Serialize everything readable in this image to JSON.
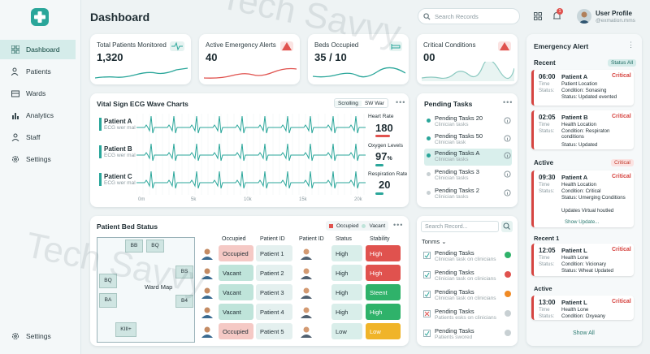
{
  "app": {
    "title": "Dashboard",
    "watermark": "Tech Savvy"
  },
  "sidebar": {
    "items": [
      {
        "label": "Dashboard",
        "icon": "grid-icon"
      },
      {
        "label": "Patients",
        "icon": "users-icon"
      },
      {
        "label": "Wards",
        "icon": "wards-icon"
      },
      {
        "label": "Analytics",
        "icon": "chart-icon"
      },
      {
        "label": "Staff",
        "icon": "staff-icon"
      },
      {
        "label": "Settings",
        "icon": "gear-icon"
      }
    ],
    "bottom": "Settings"
  },
  "header": {
    "search_placeholder": "Search Records",
    "notification_count": "1",
    "user_name": "User Profile",
    "user_email": "@exmation.mms"
  },
  "stats": [
    {
      "label": "Total Patients Monitored",
      "value": "1,320"
    },
    {
      "label": "Active Emergency Alerts",
      "value": "40"
    },
    {
      "label": "Beds Occupied",
      "value": "35 / 10"
    },
    {
      "label": "Critical Conditions",
      "value": "00"
    }
  ],
  "ecg": {
    "title": "Vital Sign ECG Wave Charts",
    "toggle_a": "Scrolling",
    "toggle_b": "SW War",
    "patients": [
      {
        "name": "Patient A",
        "sub": "ECG wer mal"
      },
      {
        "name": "Patient B",
        "sub": "ECG wer mal"
      },
      {
        "name": "Patient C",
        "sub": "ECG wer mal"
      }
    ],
    "axis": [
      "0m",
      "5k",
      "10k",
      "15k",
      "20k"
    ],
    "heart_rate_label": "Heart Rate",
    "heart_rate": "180",
    "oxygen_label": "Oxygen Levels",
    "oxygen": "97",
    "oxygen_unit": "%",
    "resp_label": "Respiration Rate",
    "resp": "20"
  },
  "pending": {
    "title": "Pending Tasks",
    "items": [
      {
        "name": "Pending Tasks 20",
        "sub": "Clinician tasks"
      },
      {
        "name": "Pending Tasks 50",
        "sub": "Clinician task"
      },
      {
        "name": "Pending Tasks A",
        "sub": "Clinician tasks"
      },
      {
        "name": "Pending Tasks 3",
        "sub": "Clinician tasks"
      },
      {
        "name": "Pending Tasks 2",
        "sub": "Clinician tasks"
      }
    ]
  },
  "bed": {
    "title": "Patient Bed Status",
    "legend_occupied": "Occupied",
    "legend_vacant": "Vacant",
    "map_label": "Ward Map",
    "rooms": [
      "BB",
      "BQ",
      "BS",
      "BQ",
      "BA",
      "B4",
      "KIII+"
    ],
    "headers": [
      "Occupied",
      "Patient ID",
      "Patient ID",
      "Status",
      "Stability"
    ],
    "rows": [
      {
        "occ": "Occupied",
        "pid": "Patient 1",
        "status": "High",
        "stability": "High",
        "occ_color": "#f5c9c5",
        "stab_color": "#e0524e"
      },
      {
        "occ": "Vacant",
        "pid": "Patient 2",
        "status": "High",
        "stability": "High",
        "occ_color": "#bfe4da",
        "stab_color": "#e0524e"
      },
      {
        "occ": "Vacant",
        "pid": "Patient 3",
        "status": "High",
        "stability": "Steent",
        "occ_color": "#bfe4da",
        "stab_color": "#2fb26a"
      },
      {
        "occ": "Vacant",
        "pid": "Patient 4",
        "status": "High",
        "stability": "High",
        "occ_color": "#bfe4da",
        "stab_color": "#2fb26a"
      },
      {
        "occ": "Occupied",
        "pid": "Patient 5",
        "status": "Low",
        "stability": "Low",
        "occ_color": "#f5c9c5",
        "stab_color": "#f0b429"
      }
    ]
  },
  "tasks2": {
    "search_placeholder": "Search Record...",
    "filter": "Tonms",
    "items": [
      {
        "name": "Pending Tasks",
        "sub": "Clinician task on clinicians",
        "status": "#2fb26a"
      },
      {
        "name": "Pending Tasks",
        "sub": "Clinician task on clinicians",
        "status": "#e0524e"
      },
      {
        "name": "Pending Tasks",
        "sub": "Clinician task on clinicians",
        "status": "#f08a24"
      },
      {
        "name": "Pending Tasks",
        "sub": "Patients esks on clinicians",
        "status": "#c8d0d3"
      },
      {
        "name": "Pending Tasks",
        "sub": "Patients swored",
        "status": "#c8d0d3"
      }
    ]
  },
  "alerts": {
    "title": "Emergency Alert",
    "recent_label": "Recent",
    "status_badge": "Status All",
    "active_label": "Active",
    "active_badge": "Critical",
    "recent1_label": "Recent 1",
    "active2_label": "Active",
    "show_update": "Show Update...",
    "show_all": "Show All",
    "cards": [
      {
        "time": "06:00",
        "name": "Patient A",
        "badge": "Critical",
        "l1k": "Time",
        "l1v": "Patient Location",
        "l2k": "Status:",
        "l2v": "Condition: Sonasing",
        "l3k": "",
        "l3v": "Status: Updated evented"
      },
      {
        "time": "02:05",
        "name": "Patient B",
        "badge": "Critical",
        "l1k": "Time",
        "l1v": "Health Location",
        "l2k": "Status:",
        "l2v": "Condition: Respiraton conditions",
        "l3k": "",
        "l3v": "Status: Updated"
      },
      {
        "time": "09:30",
        "name": "Patient A",
        "badge": "Critical",
        "l1k": "Time",
        "l1v": "Health Location",
        "l2k": "Status:",
        "l2v": "Condition: Critical",
        "l3k": "",
        "l3v": "Status: Umerging Conditions"
      },
      {
        "time": "12:05",
        "name": "Patient L",
        "badge": "Critical",
        "l1k": "Time",
        "l1v": "Health Lone",
        "l2k": "Status:",
        "l2v": "Condition: Vicionary",
        "l3k": "",
        "l3v": "Status: Wheat Updated"
      },
      {
        "time": "13:00",
        "name": "Patient L",
        "badge": "Critical",
        "l1k": "Time",
        "l1v": "Health Lone",
        "l2k": "Status:",
        "l2v": "Condition: Oxyeany",
        "l3k": "",
        "l3v": ""
      }
    ],
    "extra_text": "Updates Virtual houtled"
  }
}
